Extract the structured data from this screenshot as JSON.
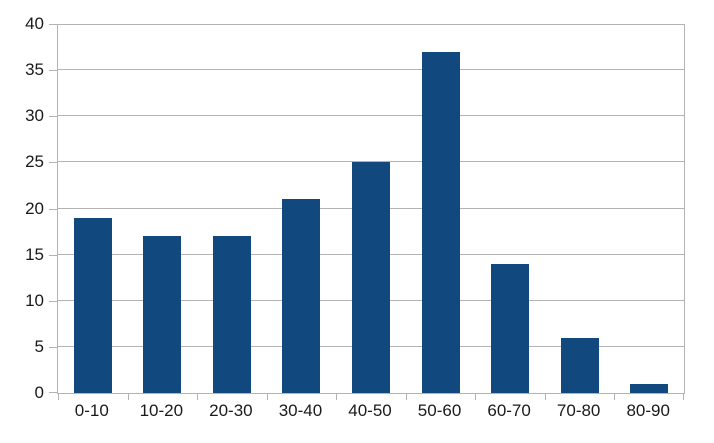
{
  "chart_data": {
    "type": "bar",
    "title": "",
    "xlabel": "",
    "ylabel": "",
    "categories": [
      "0-10",
      "10-20",
      "20-30",
      "30-40",
      "40-50",
      "50-60",
      "60-70",
      "70-80",
      "80-90"
    ],
    "values": [
      19,
      17,
      17,
      21,
      25,
      37,
      14,
      6,
      1
    ],
    "ylim": [
      0,
      40
    ],
    "yticks": [
      0,
      5,
      10,
      15,
      20,
      25,
      30,
      35,
      40
    ],
    "grid": true,
    "legend": "none",
    "colors": {
      "bar": "#11497E",
      "grid": "#b3b3b3",
      "label": "#1a1a1a",
      "background": "#ffffff"
    }
  }
}
